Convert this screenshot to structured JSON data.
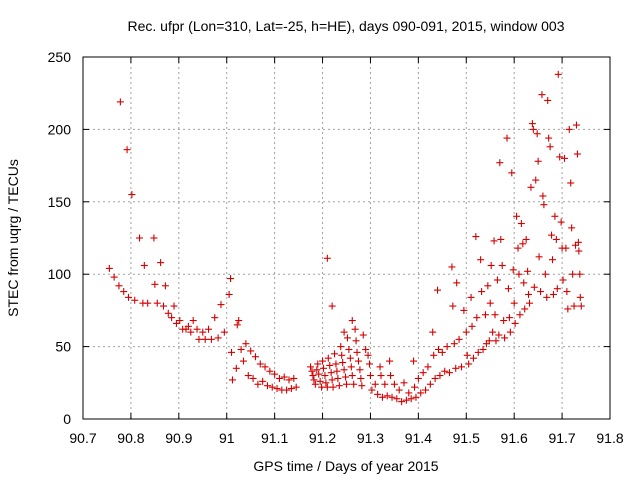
{
  "chart_data": {
    "type": "scatter",
    "title": "Rec. ufpr (Lon=310, Lat=-25, h=HE), days 090-091, 2015, window 003",
    "xlabel": "GPS time / Days of year 2015",
    "ylabel": "STEC from uqrg / TECUs",
    "xlim": [
      90.7,
      91.8
    ],
    "ylim": [
      0,
      250
    ],
    "xticks": [
      "90.7",
      "90.8",
      "90.9",
      "91",
      "91.1",
      "91.2",
      "91.3",
      "91.4",
      "91.5",
      "91.6",
      "91.7",
      "91.8"
    ],
    "yticks": [
      "0",
      "50",
      "100",
      "150",
      "200",
      "250"
    ],
    "grid": true,
    "marker": "+",
    "color": "#d40000",
    "series": [
      {
        "points": [
          [
            90.755,
            104
          ],
          [
            90.765,
            98
          ],
          [
            90.775,
            92
          ],
          [
            90.778,
            219
          ],
          [
            90.785,
            88
          ],
          [
            90.792,
            186
          ],
          [
            90.795,
            84
          ],
          [
            90.802,
            155
          ],
          [
            90.808,
            82
          ],
          [
            90.818,
            125
          ],
          [
            90.825,
            80
          ],
          [
            90.828,
            106
          ],
          [
            90.835,
            80
          ],
          [
            90.848,
            125
          ],
          [
            90.85,
            93
          ],
          [
            90.855,
            80
          ],
          [
            90.862,
            108
          ],
          [
            90.868,
            78
          ],
          [
            90.872,
            92
          ],
          [
            90.878,
            73
          ],
          [
            90.885,
            70
          ],
          [
            90.89,
            78
          ],
          [
            90.895,
            66
          ],
          [
            90.902,
            68
          ],
          [
            90.908,
            62
          ],
          [
            90.915,
            62
          ],
          [
            90.92,
            64
          ],
          [
            90.925,
            60
          ],
          [
            90.93,
            68
          ],
          [
            90.938,
            62
          ],
          [
            90.942,
            55
          ],
          [
            90.95,
            60
          ],
          [
            90.955,
            55
          ],
          [
            90.962,
            62
          ],
          [
            90.968,
            55
          ],
          [
            90.975,
            70
          ],
          [
            90.982,
            56
          ],
          [
            90.988,
            79
          ],
          [
            90.995,
            60
          ],
          [
            91.005,
            86
          ],
          [
            91.008,
            97
          ],
          [
            91.01,
            46
          ],
          [
            91.012,
            27
          ],
          [
            91.02,
            35
          ],
          [
            91.022,
            65
          ],
          [
            91.025,
            68
          ],
          [
            91.03,
            48
          ],
          [
            91.035,
            40
          ],
          [
            91.04,
            52
          ],
          [
            91.045,
            30
          ],
          [
            91.05,
            47
          ],
          [
            91.055,
            28
          ],
          [
            91.06,
            43
          ],
          [
            91.065,
            24
          ],
          [
            91.07,
            38
          ],
          [
            91.075,
            26
          ],
          [
            91.08,
            36
          ],
          [
            91.085,
            23
          ],
          [
            91.09,
            33
          ],
          [
            91.095,
            22
          ],
          [
            91.1,
            31
          ],
          [
            91.105,
            21
          ],
          [
            91.11,
            28
          ],
          [
            91.115,
            20
          ],
          [
            91.12,
            29
          ],
          [
            91.125,
            20
          ],
          [
            91.13,
            27
          ],
          [
            91.135,
            21
          ],
          [
            91.14,
            28
          ],
          [
            91.145,
            22
          ],
          [
            91.175,
            36
          ],
          [
            91.178,
            33
          ],
          [
            91.18,
            30
          ],
          [
            91.182,
            27
          ],
          [
            91.185,
            24
          ],
          [
            91.188,
            34
          ],
          [
            91.19,
            38
          ],
          [
            91.192,
            31
          ],
          [
            91.195,
            26
          ],
          [
            91.198,
            22
          ],
          [
            91.2,
            40
          ],
          [
            91.202,
            35
          ],
          [
            91.205,
            30
          ],
          [
            91.207,
            25
          ],
          [
            91.21,
            111
          ],
          [
            91.21,
            22
          ],
          [
            91.212,
            42
          ],
          [
            91.215,
            37
          ],
          [
            91.218,
            32
          ],
          [
            91.22,
            78
          ],
          [
            91.22,
            27
          ],
          [
            91.222,
            22
          ],
          [
            91.225,
            45
          ],
          [
            91.228,
            38
          ],
          [
            91.23,
            33
          ],
          [
            91.232,
            28
          ],
          [
            91.235,
            23
          ],
          [
            91.238,
            50
          ],
          [
            91.24,
            44
          ],
          [
            91.242,
            39
          ],
          [
            91.245,
            60
          ],
          [
            91.245,
            34
          ],
          [
            91.248,
            29
          ],
          [
            91.25,
            24
          ],
          [
            91.252,
            56
          ],
          [
            91.255,
            48
          ],
          [
            91.258,
            42
          ],
          [
            91.26,
            36
          ],
          [
            91.262,
            68
          ],
          [
            91.262,
            30
          ],
          [
            91.265,
            24
          ],
          [
            91.268,
            62
          ],
          [
            91.27,
            54
          ],
          [
            91.272,
            46
          ],
          [
            91.275,
            40
          ],
          [
            91.278,
            34
          ],
          [
            91.28,
            28
          ],
          [
            91.282,
            23
          ],
          [
            91.285,
            58
          ],
          [
            91.29,
            48
          ],
          [
            91.295,
            44
          ],
          [
            91.298,
            38
          ],
          [
            91.3,
            30
          ],
          [
            91.303,
            20
          ],
          [
            91.31,
            24
          ],
          [
            91.315,
            17
          ],
          [
            91.32,
            36
          ],
          [
            91.322,
            30
          ],
          [
            91.325,
            15
          ],
          [
            91.33,
            24
          ],
          [
            91.335,
            16
          ],
          [
            91.34,
            40
          ],
          [
            91.342,
            30
          ],
          [
            91.345,
            15
          ],
          [
            91.35,
            24
          ],
          [
            91.355,
            14
          ],
          [
            91.36,
            20
          ],
          [
            91.365,
            12
          ],
          [
            91.37,
            25
          ],
          [
            91.375,
            13
          ],
          [
            91.38,
            18
          ],
          [
            91.385,
            14
          ],
          [
            91.39,
            40
          ],
          [
            91.392,
            22
          ],
          [
            91.395,
            15
          ],
          [
            91.4,
            28
          ],
          [
            91.405,
            18
          ],
          [
            91.41,
            32
          ],
          [
            91.415,
            20
          ],
          [
            91.42,
            36
          ],
          [
            91.425,
            24
          ],
          [
            91.43,
            60
          ],
          [
            91.432,
            44
          ],
          [
            91.435,
            28
          ],
          [
            91.44,
            89
          ],
          [
            91.442,
            48
          ],
          [
            91.445,
            30
          ],
          [
            91.45,
            46
          ],
          [
            91.455,
            33
          ],
          [
            91.46,
            50
          ],
          [
            91.465,
            32
          ],
          [
            91.47,
            105
          ],
          [
            91.472,
            78
          ],
          [
            91.475,
            52
          ],
          [
            91.478,
            35
          ],
          [
            91.48,
            94
          ],
          [
            91.485,
            55
          ],
          [
            91.49,
            36
          ],
          [
            91.495,
            75
          ],
          [
            91.5,
            60
          ],
          [
            91.502,
            44
          ],
          [
            91.505,
            38
          ],
          [
            91.51,
            84
          ],
          [
            91.512,
            64
          ],
          [
            91.515,
            42
          ],
          [
            91.52,
            126
          ],
          [
            91.522,
            70
          ],
          [
            91.525,
            46
          ],
          [
            91.53,
            110
          ],
          [
            91.532,
            88
          ],
          [
            91.535,
            48
          ],
          [
            91.54,
            72
          ],
          [
            91.542,
            52
          ],
          [
            91.545,
            92
          ],
          [
            91.548,
            54
          ],
          [
            91.55,
            80
          ],
          [
            91.552,
            106
          ],
          [
            91.555,
            60
          ],
          [
            91.558,
            123
          ],
          [
            91.56,
            72
          ],
          [
            91.562,
            54
          ],
          [
            91.565,
            96
          ],
          [
            91.568,
            58
          ],
          [
            91.57,
            177
          ],
          [
            91.572,
            124
          ],
          [
            91.575,
            106
          ],
          [
            91.578,
            68
          ],
          [
            91.58,
            56
          ],
          [
            91.585,
            194
          ],
          [
            91.588,
            90
          ],
          [
            91.59,
            70
          ],
          [
            91.592,
            60
          ],
          [
            91.595,
            170
          ],
          [
            91.598,
            103
          ],
          [
            91.6,
            80
          ],
          [
            91.602,
            66
          ],
          [
            91.605,
            140
          ],
          [
            91.608,
            118
          ],
          [
            91.61,
            100
          ],
          [
            91.612,
            72
          ],
          [
            91.615,
            135
          ],
          [
            91.618,
            121
          ],
          [
            91.62,
            94
          ],
          [
            91.622,
            76
          ],
          [
            91.625,
            124
          ],
          [
            91.628,
            102
          ],
          [
            91.63,
            86
          ],
          [
            91.632,
            80
          ],
          [
            91.635,
            160
          ],
          [
            91.638,
            204
          ],
          [
            91.64,
            200
          ],
          [
            91.642,
            91
          ],
          [
            91.645,
            165
          ],
          [
            91.648,
            197
          ],
          [
            91.65,
            178
          ],
          [
            91.652,
            112
          ],
          [
            91.655,
            88
          ],
          [
            91.658,
            224
          ],
          [
            91.66,
            154
          ],
          [
            91.662,
            148
          ],
          [
            91.665,
            100
          ],
          [
            91.668,
            84
          ],
          [
            91.67,
            220
          ],
          [
            91.672,
            194
          ],
          [
            91.675,
            188
          ],
          [
            91.678,
            127
          ],
          [
            91.68,
            110
          ],
          [
            91.682,
            86
          ],
          [
            91.685,
            140
          ],
          [
            91.688,
            124
          ],
          [
            91.69,
            90
          ],
          [
            91.692,
            238
          ],
          [
            91.695,
            181
          ],
          [
            91.698,
            136
          ],
          [
            91.7,
            118
          ],
          [
            91.702,
            96
          ],
          [
            91.705,
            180
          ],
          [
            91.708,
            118
          ],
          [
            91.71,
            88
          ],
          [
            91.712,
            76
          ],
          [
            91.715,
            200
          ],
          [
            91.718,
            163
          ],
          [
            91.72,
            132
          ],
          [
            91.722,
            100
          ],
          [
            91.725,
            78
          ],
          [
            91.728,
            120
          ],
          [
            91.73,
            203
          ],
          [
            91.732,
            183
          ],
          [
            91.734,
            122
          ],
          [
            91.735,
            116
          ],
          [
            91.737,
            100
          ],
          [
            91.738,
            84
          ],
          [
            91.74,
            78
          ]
        ]
      }
    ]
  }
}
